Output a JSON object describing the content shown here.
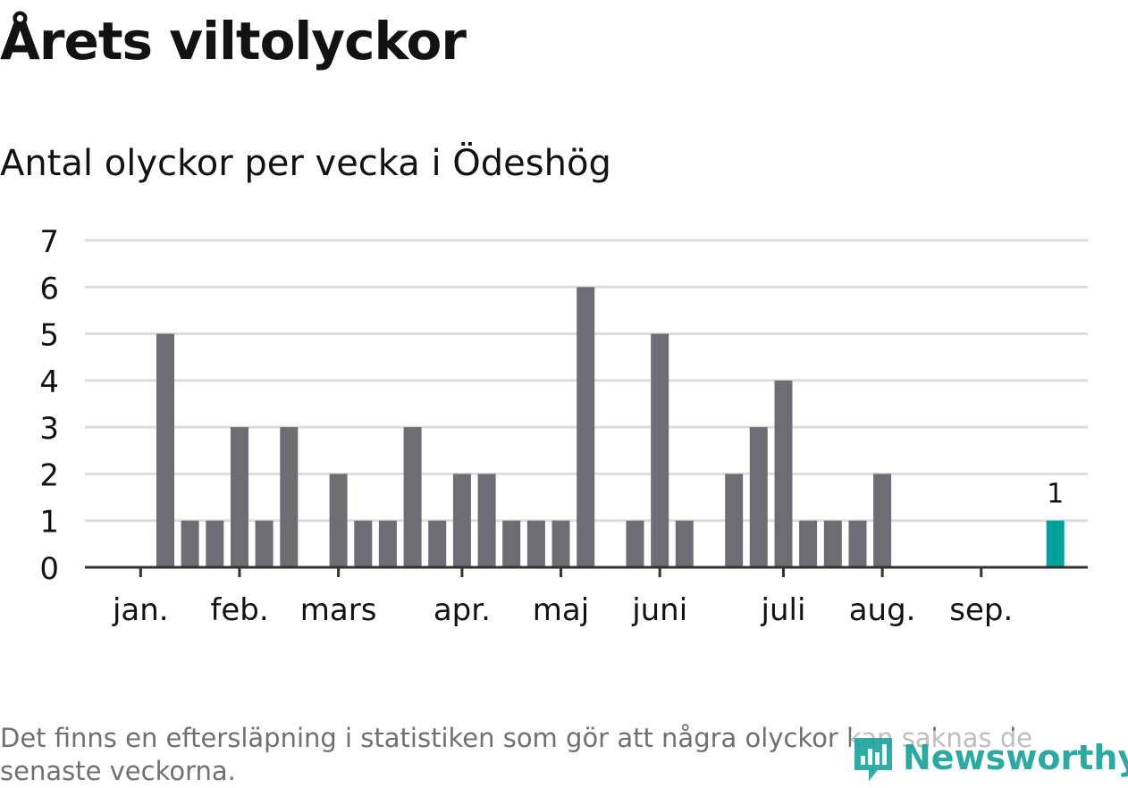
{
  "title": "Årets viltolyckor",
  "subtitle": "Antal olyckor per vecka i Ödeshög",
  "footnote": "Det finns en eftersläpning i statistiken som gör att några olyckor kan saknas de senaste veckorna.",
  "brand": {
    "name": "Newsworthy",
    "icon": "bar-chart-logo-icon",
    "color": "#1aa39a"
  },
  "colors": {
    "bar": "#6e6d73",
    "highlight": "#00a39a",
    "grid": "#dddddd",
    "axis": "#333333",
    "text": "#121212"
  },
  "chart_data": {
    "type": "bar",
    "title": "Antal olyckor per vecka i Ödeshög",
    "xlabel": "",
    "ylabel": "",
    "ylim": [
      0,
      7
    ],
    "yticks": [
      "0",
      "1",
      "2",
      "3",
      "4",
      "5",
      "6",
      "7"
    ],
    "grid": true,
    "weeks": [
      1,
      2,
      3,
      4,
      5,
      6,
      7,
      8,
      9,
      10,
      11,
      12,
      13,
      14,
      15,
      16,
      17,
      18,
      19,
      20,
      21,
      22,
      23,
      24,
      25,
      26,
      27,
      28,
      29,
      30,
      31,
      32,
      33,
      34,
      35,
      36,
      37,
      38,
      39,
      40
    ],
    "values": [
      0,
      0,
      0,
      5,
      1,
      1,
      3,
      1,
      3,
      0,
      2,
      1,
      1,
      3,
      1,
      2,
      2,
      1,
      1,
      1,
      6,
      0,
      1,
      5,
      1,
      0,
      2,
      3,
      4,
      1,
      1,
      1,
      2,
      0,
      0,
      0,
      0,
      0,
      0,
      1
    ],
    "highlight_index": 39,
    "highlight_label": "1",
    "month_labels": [
      {
        "label": "jan.",
        "week": 3
      },
      {
        "label": "feb.",
        "week": 7
      },
      {
        "label": "mars",
        "week": 11
      },
      {
        "label": "apr.",
        "week": 16
      },
      {
        "label": "maj",
        "week": 20
      },
      {
        "label": "juni",
        "week": 24
      },
      {
        "label": "juli",
        "week": 29
      },
      {
        "label": "aug.",
        "week": 33
      },
      {
        "label": "sep.",
        "week": 37
      }
    ]
  }
}
